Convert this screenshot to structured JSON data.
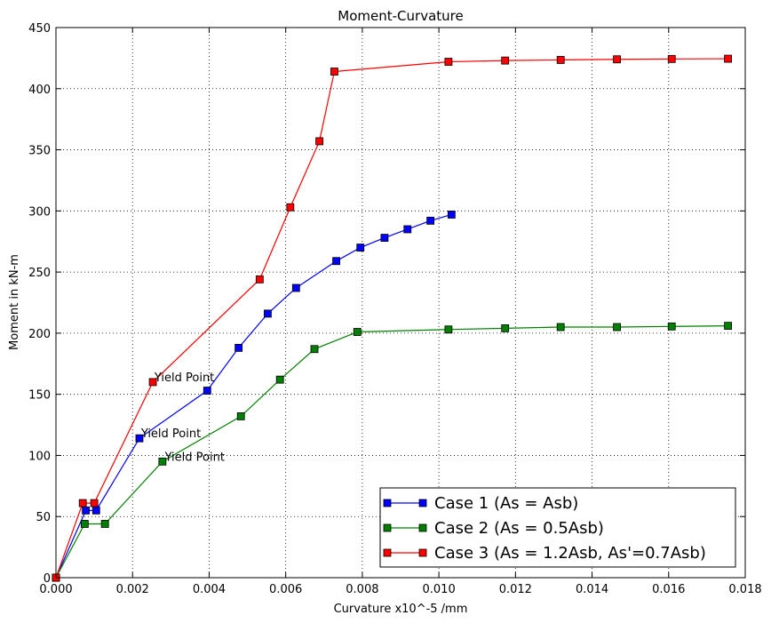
{
  "chart_data": {
    "type": "line",
    "title": "Moment-Curvature",
    "xlabel": "Curvature  x10^-5 /mm",
    "ylabel": "Moment  in kN-m",
    "xlim": [
      0,
      0.018
    ],
    "ylim": [
      0,
      450
    ],
    "x_ticks": [
      0.0,
      0.002,
      0.004,
      0.006,
      0.008,
      0.01,
      0.012,
      0.014,
      0.016,
      0.018
    ],
    "x_tick_labels": [
      "0.000",
      "0.002",
      "0.004",
      "0.006",
      "0.008",
      "0.010",
      "0.012",
      "0.014",
      "0.016",
      "0.018"
    ],
    "y_ticks": [
      0,
      50,
      100,
      150,
      200,
      250,
      300,
      350,
      400,
      450
    ],
    "y_tick_labels": [
      "0",
      "50",
      "100",
      "150",
      "200",
      "250",
      "300",
      "350",
      "400",
      "450"
    ],
    "grid": true,
    "legend_position": "lower-right",
    "series": [
      {
        "name": "Case 1 (As = Asb)",
        "color": "#0000ff",
        "marker": "square",
        "x": [
          0.0,
          0.00078,
          0.00105,
          0.00218,
          0.00395,
          0.00477,
          0.00553,
          0.00627,
          0.00732,
          0.00795,
          0.00858,
          0.00918,
          0.00978,
          0.01033
        ],
        "y": [
          0,
          55,
          55,
          114,
          153,
          188,
          216,
          237,
          259,
          270,
          278,
          285,
          292,
          297
        ]
      },
      {
        "name": "Case 2 (As = 0.5Asb)",
        "color": "#008000",
        "marker": "square",
        "x": [
          0.0,
          0.00075,
          0.00128,
          0.00278,
          0.00483,
          0.00585,
          0.00675,
          0.00787,
          0.01025,
          0.01173,
          0.01318,
          0.01465,
          0.01608,
          0.01755
        ],
        "y": [
          0,
          44,
          44,
          95,
          132,
          162,
          187,
          201,
          203,
          204,
          205,
          205,
          205.5,
          206
        ]
      },
      {
        "name": "Case 3 (As = 1.2Asb, As'=0.7Asb)",
        "color": "#ff0000",
        "marker": "square",
        "x": [
          0.0,
          0.0007,
          0.001,
          0.00253,
          0.00532,
          0.00612,
          0.00688,
          0.00727,
          0.01025,
          0.01173,
          0.01318,
          0.01465,
          0.01608,
          0.01755
        ],
        "y": [
          0,
          61,
          61,
          160,
          244,
          303,
          357,
          414,
          422,
          423,
          423.5,
          424,
          424.3,
          424.5
        ]
      }
    ],
    "annotations": [
      {
        "text": "Yield Point",
        "x": 0.00255,
        "y": 160
      },
      {
        "text": "Yield Point",
        "x": 0.0022,
        "y": 114
      },
      {
        "text": "Yield Point",
        "x": 0.00282,
        "y": 95
      }
    ]
  }
}
